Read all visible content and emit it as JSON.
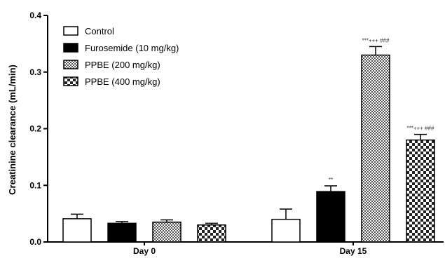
{
  "chart_data": {
    "type": "bar",
    "categories": [
      "Day 0",
      "Day 15"
    ],
    "ylabel": "Creatinine clearance (mL/min)",
    "xlabel": "",
    "ylim": [
      0,
      0.4
    ],
    "yticks": [
      "0.0",
      "0.1",
      "0.2",
      "0.3",
      "0.4"
    ],
    "error_bars": true,
    "legend_position": "top-left",
    "series": [
      {
        "name": "Control",
        "fill": "white",
        "values": [
          0.041,
          0.04
        ],
        "errors": [
          0.008,
          0.018
        ],
        "annotations": [
          "",
          ""
        ]
      },
      {
        "name": "Furosemide (10 mg/kg)",
        "fill": "black",
        "values": [
          0.033,
          0.089
        ],
        "errors": [
          0.003,
          0.01
        ],
        "annotations": [
          "",
          "**"
        ]
      },
      {
        "name": "PPBE (200 mg/kg)",
        "fill": "fine-checker",
        "values": [
          0.035,
          0.33
        ],
        "errors": [
          0.004,
          0.015
        ],
        "annotations": [
          "",
          "***+++ ###"
        ]
      },
      {
        "name": "PPBE (400 mg/kg)",
        "fill": "coarse-checker",
        "values": [
          0.03,
          0.18
        ],
        "errors": [
          0.003,
          0.01
        ],
        "annotations": [
          "",
          "***+++ ###"
        ]
      }
    ]
  },
  "colors": {
    "axis": "#000000",
    "bar_dark": "#000000",
    "bar_light": "#ffffff"
  }
}
